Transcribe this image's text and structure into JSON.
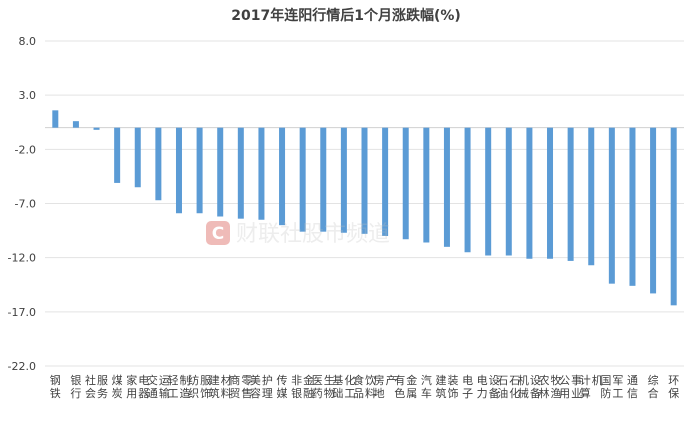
{
  "chart_data": {
    "type": "bar",
    "title": "2017年连阳行情后1个月涨跌幅(%)",
    "xlabel": "",
    "ylabel": "",
    "ylim": [
      -22.0,
      8.0
    ],
    "yticks": [
      "8.0",
      "3.0",
      "-2.0",
      "-7.0",
      "-12.0",
      "-17.0",
      "-22.0"
    ],
    "grid": true,
    "bar_color": "#5b9bd5",
    "categories": [
      "钢铁",
      "银行",
      "社会服务",
      "煤炭",
      "家用电器",
      "交通运输",
      "轻工制造",
      "纺织服饰",
      "建筑材料",
      "商贸零售",
      "美容护理",
      "传媒",
      "非银金融",
      "医药生物",
      "基础化工",
      "食品饮料",
      "房地产",
      "有色金属",
      "汽车",
      "建筑装饰",
      "电子",
      "电力设备",
      "石油石化",
      "机械设备",
      "农林牧渔",
      "公用事业",
      "计算机",
      "国防军工",
      "通信",
      "综合",
      "环保"
    ],
    "values": [
      1.6,
      0.6,
      -0.2,
      -5.1,
      -5.5,
      -6.7,
      -7.9,
      -7.9,
      -8.2,
      -8.4,
      -8.5,
      -9.0,
      -9.6,
      -9.6,
      -9.7,
      -9.8,
      -10.0,
      -10.3,
      -10.6,
      -11.0,
      -11.5,
      -11.8,
      -11.8,
      -12.1,
      -12.1,
      -12.3,
      -12.7,
      -14.4,
      -14.6,
      -15.3,
      -16.4
    ]
  },
  "watermark": {
    "icon": "c-logo-icon",
    "text": "财联社股市频道"
  }
}
